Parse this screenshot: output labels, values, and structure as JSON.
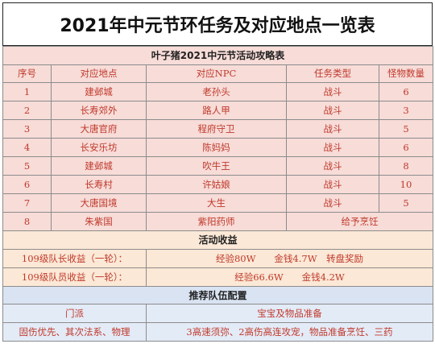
{
  "title": "2021年中元节环任务及对应地点一览表",
  "strategy_header": "叶子猪2021中元节活动攻略表",
  "columns": [
    "序号",
    "对应地点",
    "对应NPC",
    "任务类型",
    "怪物数量"
  ],
  "rows": [
    {
      "no": "1",
      "place": "建邺城",
      "npc": "老孙头",
      "type": "战斗",
      "count": "6"
    },
    {
      "no": "2",
      "place": "长寿郊外",
      "npc": "路人甲",
      "type": "战斗",
      "count": "3"
    },
    {
      "no": "3",
      "place": "大唐官府",
      "npc": "程府守卫",
      "type": "战斗",
      "count": "5"
    },
    {
      "no": "4",
      "place": "长安乐坊",
      "npc": "陈妈妈",
      "type": "战斗",
      "count": "6"
    },
    {
      "no": "5",
      "place": "建邺城",
      "npc": "吹牛王",
      "type": "战斗",
      "count": "8"
    },
    {
      "no": "6",
      "place": "长寿村",
      "npc": "许姑娘",
      "type": "战斗",
      "count": "10"
    },
    {
      "no": "7",
      "place": "大唐国境",
      "npc": "大生",
      "type": "战斗",
      "count": "5"
    }
  ],
  "row8": {
    "no": "8",
    "place": "朱紫国",
    "npc": "紫阳药师",
    "task": "给予烹饪"
  },
  "income_header": "活动收益",
  "income": [
    {
      "label": "109级队长收益（一轮）：",
      "value": "经验80W　　金钱4.7W　转盘奖励"
    },
    {
      "label": "109级队员收益（一轮）：",
      "value": "经验66.6W　　金钱4.2W"
    }
  ],
  "team_header": "推荐队伍配置",
  "team_cols": [
    "门派",
    "宝宝及物品准备"
  ],
  "team_row": {
    "sect": "固伤优先、其次法系、物理",
    "prep": "3高速须弥、2高伤高连攻宠，物品准备烹饪、三药"
  }
}
